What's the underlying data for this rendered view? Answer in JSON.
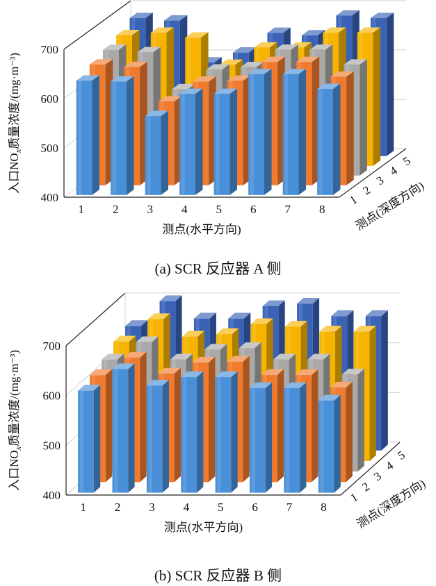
{
  "colors": {
    "depth1": "#4a90d9",
    "depth2": "#f07a2e",
    "depth3": "#a9a9a9",
    "depth4": "#f6b400",
    "depth5": "#3a63b8",
    "grid": "#d0d0d0",
    "axis": "#222222"
  },
  "chart_data": [
    {
      "type": "bar",
      "caption": "(a)  SCR 反应器 A 侧",
      "xlabel": "测点(水平方向)",
      "zlabel": "测点(深度方向)",
      "ylabel": "入口NO_x质量浓度/(mg·m⁻³)",
      "ylim": [
        400,
        700
      ],
      "yticks": [
        "400",
        "500",
        "600",
        "700"
      ],
      "categories": [
        "1",
        "2",
        "3",
        "4",
        "5",
        "6",
        "7",
        "8"
      ],
      "depth_labels": [
        "1",
        "2",
        "3",
        "4",
        "5"
      ],
      "series": [
        {
          "values": [
            632,
            630,
            560,
            605,
            605,
            645,
            645,
            615
          ]
        },
        {
          "values": [
            645,
            640,
            570,
            610,
            612,
            650,
            650,
            620
          ]
        },
        {
          "values": [
            655,
            650,
            575,
            615,
            620,
            655,
            655,
            625
          ]
        },
        {
          "values": [
            665,
            670,
            660,
            605,
            640,
            640,
            670,
            670
          ]
        },
        {
          "values": [
            680,
            675,
            590,
            610,
            650,
            645,
            685,
            680
          ]
        }
      ]
    },
    {
      "type": "bar",
      "caption": "(b)  SCR 反应器 B 侧",
      "xlabel": "测点(水平方向)",
      "zlabel": "测点(深度方向)",
      "ylabel": "入口NO_x质量浓度/(mg·m⁻³)",
      "ylim": [
        400,
        700
      ],
      "yticks": [
        "400",
        "500",
        "600",
        "700"
      ],
      "categories": [
        "1",
        "2",
        "3",
        "4",
        "5",
        "6",
        "7",
        "8"
      ],
      "depth_labels": [
        "1",
        "2",
        "3",
        "4",
        "5"
      ],
      "series": [
        {
          "values": [
            605,
            648,
            615,
            632,
            632,
            610,
            610,
            585
          ]
        },
        {
          "values": [
            615,
            650,
            618,
            640,
            642,
            615,
            615,
            590
          ]
        },
        {
          "values": [
            625,
            660,
            625,
            645,
            648,
            625,
            625,
            595
          ]
        },
        {
          "values": [
            640,
            685,
            650,
            655,
            675,
            670,
            660,
            660
          ]
        },
        {
          "values": [
            650,
            700,
            665,
            665,
            690,
            695,
            670,
            670
          ]
        }
      ]
    }
  ]
}
